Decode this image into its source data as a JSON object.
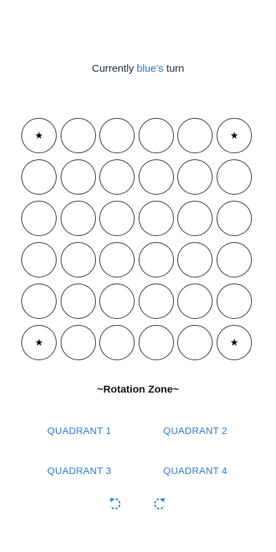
{
  "status": {
    "prefix": "Currently ",
    "player": "blue's",
    "suffix": " turn",
    "player_color": "#2f6fbf"
  },
  "board": {
    "rows": 6,
    "cols": 6,
    "cells": [
      [
        "star",
        "",
        "",
        "",
        "",
        "star"
      ],
      [
        "",
        "",
        "",
        "",
        "",
        ""
      ],
      [
        "",
        "",
        "",
        "",
        "",
        ""
      ],
      [
        "",
        "",
        "",
        "",
        "",
        ""
      ],
      [
        "",
        "",
        "",
        "",
        "",
        ""
      ],
      [
        "star",
        "",
        "",
        "",
        "",
        "star"
      ]
    ],
    "marker_icon": "star-icon",
    "marker_glyph": "★"
  },
  "rotation": {
    "title": "~Rotation Zone~",
    "quadrants": [
      "QUADRANT 1",
      "QUADRANT 2",
      "QUADRANT 3",
      "QUADRANT 4"
    ],
    "accent": "#2f7bd1",
    "counterclockwise_icon": "rotate-counterclockwise-icon",
    "clockwise_icon": "rotate-clockwise-icon"
  }
}
